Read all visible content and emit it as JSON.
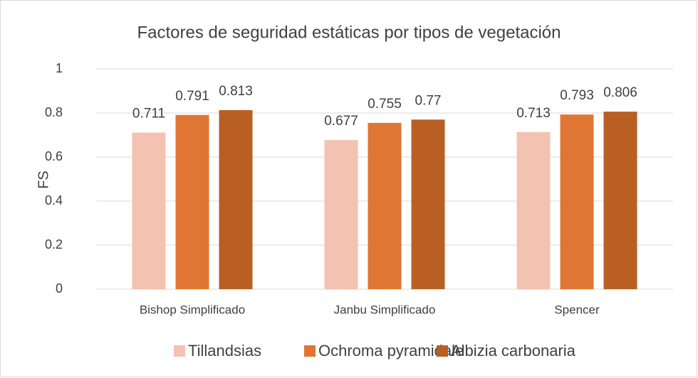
{
  "chart_data": {
    "type": "bar",
    "title": "Factores de seguridad estáticas por tipos de vegetación",
    "y_label": "FS",
    "categories": [
      "Bishop Simplificado",
      "Janbu Simplificado",
      "Spencer"
    ],
    "series": [
      {
        "name": "Tillandsias",
        "color": "#f4c2b0",
        "values": [
          0.711,
          0.677,
          0.713
        ]
      },
      {
        "name": "Ochroma pyramidale",
        "color": "#e07634",
        "values": [
          0.791,
          0.755,
          0.793
        ]
      },
      {
        "name": "Albizia carbonaria",
        "color": "#b95f24",
        "values": [
          0.813,
          0.77,
          0.806
        ]
      }
    ],
    "ylim": [
      0,
      1
    ],
    "yticks": [
      0,
      0.2,
      0.4,
      0.6,
      0.8,
      1
    ],
    "grid": true,
    "legend": "bottom"
  }
}
